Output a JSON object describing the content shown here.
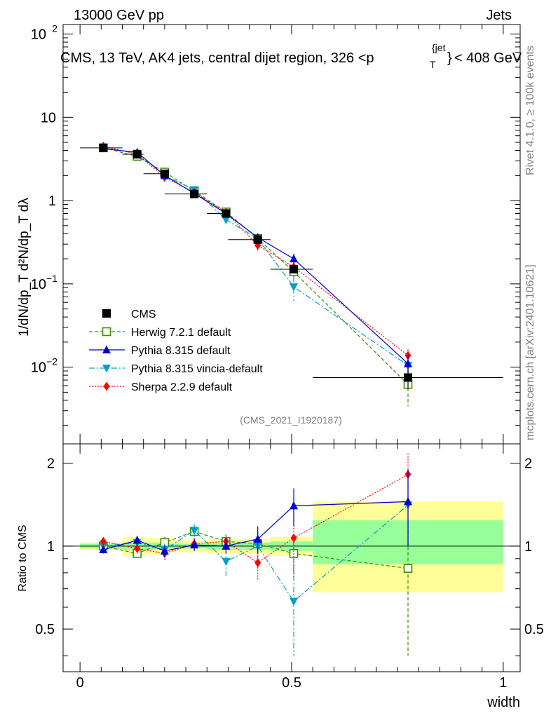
{
  "header": {
    "left": "13000 GeV pp",
    "right": "Jets"
  },
  "side": {
    "rivet": "Rivet 4.1.0, ≥ 100k events",
    "mcplots": "mcplots.cern.ch [arXiv:2401.10621]"
  },
  "colors": {
    "cms": "#000000",
    "herwig": "#3a8f00",
    "pythia": "#0000d0",
    "vincia": "#00a0c8",
    "sherpa": "#ff0000",
    "band_outer": "#ffff99",
    "band_inner": "#99ff99"
  },
  "chart_data": [
    {
      "type": "line",
      "title": "CMS, 13 TeV, AK4 jets, central dijet region, 326 <p_T^{jet}< 408 GeV",
      "title_main": "CMS, 13 TeV, AK4 jets, central dijet region, 326 <p",
      "title_sub": "T",
      "title_sup": "{jet",
      "title_close": "}",
      "title_end": "< 408 GeV",
      "ylabel": "1/dN/dp_T d²N/dp_T dλ",
      "yscale": "log",
      "ylim": [
        0.0012,
        130
      ],
      "xlim": [
        -0.04,
        1.04
      ],
      "yticks": [
        {
          "value": 100,
          "base": "10",
          "exp": "2"
        },
        {
          "value": 10,
          "base": "10",
          "exp": ""
        },
        {
          "value": 1,
          "base": "1",
          "exp": ""
        },
        {
          "value": 0.1,
          "base": "10",
          "exp": "−1"
        },
        {
          "value": 0.01,
          "base": "10",
          "exp": "−2"
        }
      ],
      "analysis": "(CMS_2021_I1920187)",
      "legend_position": "bottom-left",
      "x": [
        0.055,
        0.135,
        0.2,
        0.27,
        0.345,
        0.42,
        0.505,
        0.775
      ],
      "bin_edges": [
        0.0,
        0.1,
        0.15,
        0.2,
        0.3,
        0.35,
        0.45,
        0.55,
        1.0
      ],
      "series": [
        {
          "name": "CMS",
          "key": "cms",
          "marker": "square",
          "dash": "none",
          "values": [
            4.3,
            3.6,
            2.1,
            1.2,
            0.7,
            0.34,
            0.15,
            0.0075
          ],
          "err": [
            0.15,
            0.3,
            0.15,
            0.06,
            0.04,
            0.02,
            0.012,
            0.002
          ]
        },
        {
          "name": "Herwig 7.2.1 default",
          "key": "herwig",
          "marker": "open-square",
          "dash": "5,3",
          "values": [
            4.3,
            3.4,
            2.2,
            1.3,
            0.73,
            0.35,
            0.14,
            0.0062
          ],
          "err": [
            0.1,
            0.1,
            0.08,
            0.05,
            0.05,
            0.04,
            0.03,
            0.0028
          ]
        },
        {
          "name": "Pythia 8.315 default",
          "key": "pythia",
          "marker": "triangle-up",
          "dash": "none",
          "values": [
            4.2,
            3.8,
            2.0,
            1.22,
            0.7,
            0.36,
            0.2,
            0.011
          ],
          "err": [
            0.1,
            0.1,
            0.08,
            0.05,
            0.05,
            0.04,
            0.03,
            0.003
          ]
        },
        {
          "name": "Pythia 8.315 vincia-default",
          "key": "vincia",
          "marker": "triangle-down",
          "dash": "8,3,2,3",
          "values": [
            4.3,
            3.7,
            2.0,
            1.35,
            0.59,
            0.35,
            0.092,
            0.0105
          ],
          "err": [
            0.1,
            0.1,
            0.08,
            0.05,
            0.07,
            0.04,
            0.03,
            0.004
          ]
        },
        {
          "name": "Sherpa 2.2.9 default",
          "key": "sherpa",
          "marker": "diamond",
          "dash": "2,2",
          "values": [
            4.5,
            3.6,
            1.9,
            1.25,
            0.72,
            0.29,
            0.16,
            0.0138
          ],
          "err": [
            0.1,
            0.1,
            0.08,
            0.05,
            0.05,
            0.04,
            0.03,
            0.0025
          ]
        }
      ]
    },
    {
      "type": "line",
      "title": "",
      "xlabel": "width",
      "ylabel": "Ratio to CMS",
      "ylim": [
        0.35,
        2.35
      ],
      "xlim": [
        -0.04,
        1.04
      ],
      "yticks": [
        {
          "value": 2,
          "label": "2"
        },
        {
          "value": 1,
          "label": "1"
        },
        {
          "value": 0.5,
          "label": "0.5"
        }
      ],
      "xticks": [
        {
          "value": 0,
          "label": "0"
        },
        {
          "value": 0.5,
          "label": "0.5"
        },
        {
          "value": 1,
          "label": "1"
        }
      ],
      "bands": {
        "outer": [
          [
            0.97,
            1.03
          ],
          [
            0.92,
            1.08
          ],
          [
            0.93,
            1.07
          ],
          [
            0.95,
            1.05
          ],
          [
            0.94,
            1.06
          ],
          [
            0.94,
            1.06
          ],
          [
            0.92,
            1.08
          ],
          [
            0.68,
            1.45
          ]
        ],
        "inner": [
          [
            0.98,
            1.02
          ],
          [
            0.97,
            1.03
          ],
          [
            0.97,
            1.03
          ],
          [
            0.98,
            1.02
          ],
          [
            0.97,
            1.03
          ],
          [
            0.97,
            1.03
          ],
          [
            0.96,
            1.04
          ],
          [
            0.86,
            1.24
          ]
        ]
      },
      "series": [
        {
          "name": "Herwig 7.2.1 default",
          "key": "herwig",
          "marker": "open-square",
          "dash": "5,3",
          "values": [
            1.0,
            0.94,
            1.03,
            1.13,
            1.04,
            1.02,
            0.94,
            0.83
          ],
          "err": [
            0.03,
            0.04,
            0.05,
            0.05,
            0.06,
            0.1,
            0.15,
            0.43
          ]
        },
        {
          "name": "Pythia 8.315 default",
          "key": "pythia",
          "marker": "triangle-up",
          "dash": "none",
          "values": [
            0.97,
            1.05,
            0.96,
            1.01,
            1.0,
            1.06,
            1.4,
            1.45
          ],
          "err": [
            0.03,
            0.04,
            0.05,
            0.05,
            0.06,
            0.12,
            0.22,
            0.45
          ]
        },
        {
          "name": "Pythia 8.315 vincia-default",
          "key": "vincia",
          "marker": "triangle-down",
          "dash": "8,3,2,3",
          "values": [
            1.0,
            1.03,
            0.97,
            1.14,
            0.88,
            1.0,
            0.63,
            1.41
          ],
          "err": [
            0.03,
            0.04,
            0.05,
            0.06,
            0.1,
            0.12,
            0.23,
            0.42
          ]
        },
        {
          "name": "Sherpa 2.2.9 default",
          "key": "sherpa",
          "marker": "diamond",
          "dash": "2,2",
          "values": [
            1.04,
            0.98,
            0.94,
            1.02,
            1.04,
            0.87,
            1.07,
            1.82
          ],
          "err": [
            0.03,
            0.04,
            0.05,
            0.05,
            0.06,
            0.12,
            0.3,
            0.35
          ]
        }
      ]
    }
  ]
}
